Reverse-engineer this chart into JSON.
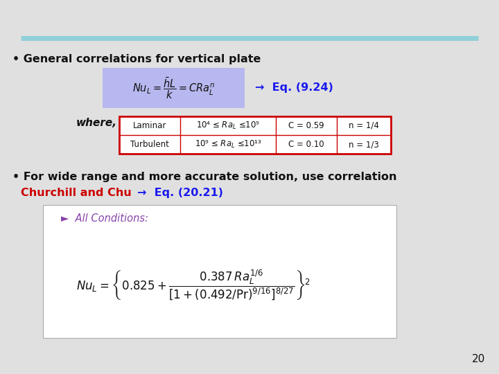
{
  "background_color": "#e0e0e0",
  "title_line_color": "#90d0d8",
  "bullet1_text": "• General correlations for vertical plate",
  "eq_label": "→  Eq. (9.24)",
  "eq_box_color": "#b8b8f0",
  "where_text": "where,",
  "table_rows": [
    [
      "Laminar",
      "10⁴ ≤ Raₗ ≤10⁹",
      "C = 0.59",
      "n = 1/4"
    ],
    [
      "Turbulent",
      "10⁹ ≤ Raₗ ≤10¹³",
      "C = 0.10",
      "n = 1/3"
    ]
  ],
  "table_border_color": "#cc0000",
  "bullet2_text": "• For wide range and more accurate solution, use correlation",
  "churchill_text": "Churchill and Chu",
  "arrow_eq2": "→  Eq. (20.21)",
  "white_box_color": "#ffffff",
  "all_conditions_text": "►  All Conditions:",
  "page_number": "20",
  "font_color_black": "#111111",
  "font_color_blue": "#1a1aee",
  "font_color_red": "#cc0000",
  "font_color_teal": "#336699"
}
